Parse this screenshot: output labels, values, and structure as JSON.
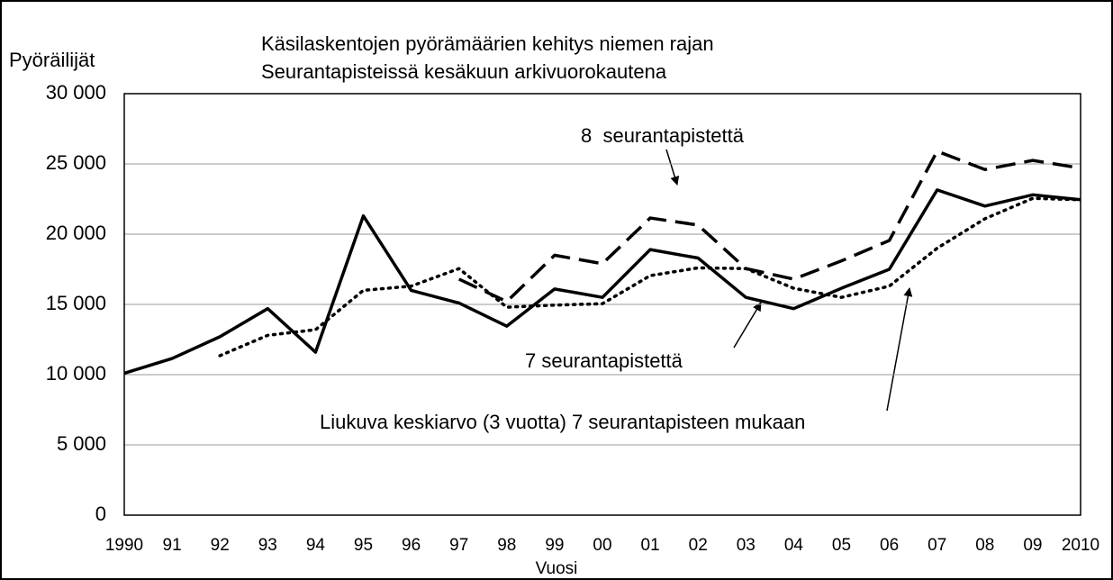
{
  "chart_data": {
    "type": "line",
    "title": [
      "Käsilaskentojen pyörämäärien kehitys niemen rajan",
      "Seurantapisteissä kesäkuun arkivuorokautena"
    ],
    "ylabel": "Pyöräilijät",
    "xlabel": "Vuosi",
    "categories": [
      "1990",
      "91",
      "92",
      "93",
      "94",
      "95",
      "96",
      "97",
      "98",
      "99",
      "00",
      "01",
      "02",
      "03",
      "04",
      "05",
      "06",
      "07",
      "08",
      "09",
      "2010"
    ],
    "series": [
      {
        "name": "7 seurantapistettä",
        "color": "#000000",
        "dash": "solid",
        "values": [
          10100,
          11150,
          12700,
          14700,
          11600,
          21300,
          16000,
          15100,
          13450,
          16100,
          15500,
          18900,
          18300,
          15500,
          14700,
          16150,
          17500,
          23150,
          22000,
          22800,
          22450
        ]
      },
      {
        "name": "8  seurantapistettä",
        "color": "#000000",
        "dash": "dashed",
        "values": [
          null,
          null,
          null,
          null,
          null,
          null,
          null,
          16800,
          15200,
          18500,
          17900,
          21150,
          20650,
          17550,
          16800,
          18100,
          19550,
          25900,
          24600,
          25250,
          24700
        ]
      },
      {
        "name": "Liukuva keskiarvo (3 vuotta) 7 seurantapisteen mukaan",
        "color": "#000000",
        "dash": "dotted",
        "values": [
          null,
          null,
          11350,
          12800,
          13200,
          16000,
          16300,
          17550,
          14800,
          14950,
          15050,
          17050,
          17600,
          17550,
          16150,
          15500,
          16300,
          19000,
          21100,
          22550,
          22450
        ]
      }
    ],
    "ylim": [
      0,
      30000
    ],
    "yticks": [
      {
        "value": 0,
        "label": "0"
      },
      {
        "value": 5000,
        "label": "5 000"
      },
      {
        "value": 10000,
        "label": "10 000"
      },
      {
        "value": 15000,
        "label": "15 000"
      },
      {
        "value": 20000,
        "label": "20 000"
      },
      {
        "value": 25000,
        "label": "25 000"
      },
      {
        "value": 30000,
        "label": "30 000"
      }
    ],
    "grid": true
  }
}
